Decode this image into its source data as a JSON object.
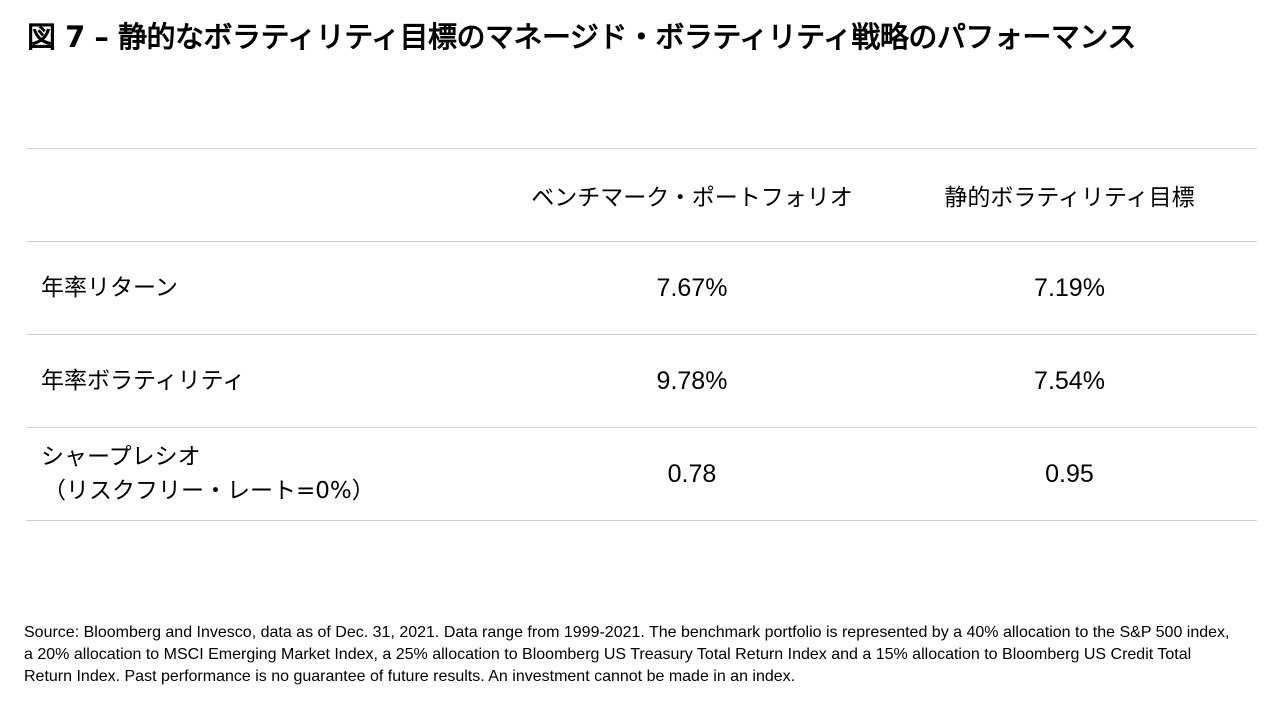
{
  "title": "図 7 – 静的なボラティリティ目標のマネージド・ボラティリティ戦略のパフォーマンス",
  "table": {
    "headers": [
      "",
      "ベンチマーク・ポートフォリオ",
      "静的ボラティリティ目標"
    ],
    "rows": [
      {
        "label_lines": [
          "年率リターン"
        ],
        "benchmark": "7.67%",
        "static_target": "7.19%"
      },
      {
        "label_lines": [
          "年率ボラティリティ"
        ],
        "benchmark": "9.78%",
        "static_target": "7.54%"
      },
      {
        "label_lines": [
          "シャープレシオ",
          "（リスクフリー・レート=0%）"
        ],
        "benchmark": "0.78",
        "static_target": "0.95"
      }
    ]
  },
  "source": "Source: Bloomberg and Invesco, data as of Dec. 31, 2021. Data range from 1999-2021. The benchmark portfolio is represented by a 40% allocation to the S&P 500 index, a 20% allocation to MSCI Emerging Market Index, a 25% allocation to Bloomberg US Treasury Total Return Index and a 15% allocation to Bloomberg US Credit Total Return Index. Past performance is no guarantee of future results. An investment cannot be made in an index."
}
